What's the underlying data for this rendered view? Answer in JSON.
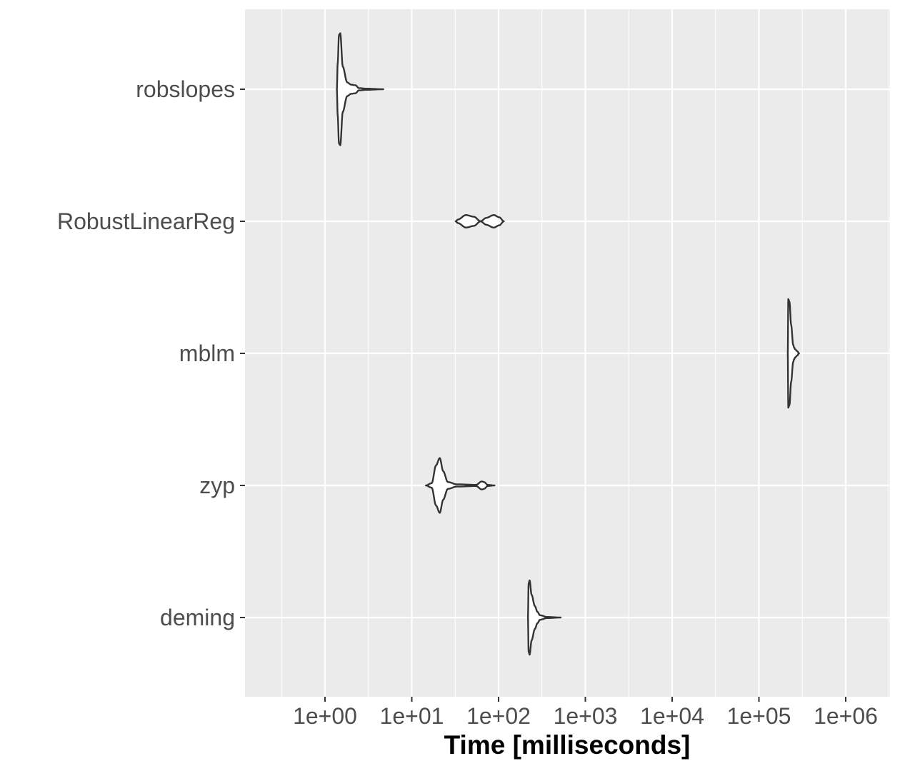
{
  "chart_data": {
    "type": "violin",
    "orientation": "horizontal",
    "title": "",
    "xlabel": "Time [milliseconds]",
    "ylabel": "",
    "x_scale": "log10",
    "xlim": [
      0.12,
      2300000
    ],
    "x_ticks": [
      1,
      10,
      100,
      1000,
      10000,
      100000,
      1000000
    ],
    "x_tick_labels": [
      "1e+00",
      "1e+01",
      "1e+02",
      "1e+03",
      "1e+04",
      "1e+05",
      "1e+06"
    ],
    "categories": [
      "robslopes",
      "RobustLinearReg",
      "mblm",
      "zyp",
      "deming"
    ],
    "grid": true,
    "colors": {
      "panel": "#ebebeb",
      "grid": "#ffffff",
      "outline": "#333333",
      "fill": "#ffffff",
      "tick_text": "#4d4d4d"
    },
    "series": [
      {
        "name": "robslopes",
        "min": 1.37,
        "max": 4.7,
        "profile": [
          [
            1.37,
            0.0
          ],
          [
            1.4,
            0.45
          ],
          [
            1.45,
            0.95
          ],
          [
            1.5,
            0.98
          ],
          [
            1.6,
            0.4
          ],
          [
            1.8,
            0.12
          ],
          [
            2.0,
            0.08
          ],
          [
            2.25,
            0.07
          ],
          [
            2.45,
            0.02
          ],
          [
            3.0,
            0.01
          ],
          [
            4.7,
            0.0
          ]
        ]
      },
      {
        "name": "RobustLinearReg",
        "min": 32,
        "max": 115,
        "profile": [
          [
            32,
            0.0
          ],
          [
            34,
            0.03
          ],
          [
            42,
            0.11
          ],
          [
            52,
            0.08
          ],
          [
            62,
            0.0
          ],
          [
            72,
            0.06
          ],
          [
            88,
            0.11
          ],
          [
            102,
            0.07
          ],
          [
            115,
            0.0
          ]
        ]
      },
      {
        "name": "mblm",
        "min": 215000,
        "max": 290000,
        "profile": [
          [
            215000,
            0.0
          ],
          [
            218000,
            0.95
          ],
          [
            225000,
            0.9
          ],
          [
            235000,
            0.5
          ],
          [
            248000,
            0.15
          ],
          [
            255000,
            0.1
          ],
          [
            262000,
            0.07
          ],
          [
            275000,
            0.04
          ],
          [
            290000,
            0.0
          ]
        ]
      },
      {
        "name": "zyp",
        "min": 14.5,
        "max": 90,
        "profile": [
          [
            14.5,
            0.0
          ],
          [
            17,
            0.04
          ],
          [
            19,
            0.35
          ],
          [
            21,
            0.48
          ],
          [
            23,
            0.25
          ],
          [
            26,
            0.06
          ],
          [
            33,
            0.02
          ],
          [
            55,
            0.01
          ],
          [
            64,
            0.07
          ],
          [
            68,
            0.06
          ],
          [
            75,
            0.01
          ],
          [
            90,
            0.0
          ]
        ]
      },
      {
        "name": "deming",
        "min": 218,
        "max": 520,
        "profile": [
          [
            218,
            0.0
          ],
          [
            222,
            0.6
          ],
          [
            228,
            0.65
          ],
          [
            240,
            0.4
          ],
          [
            262,
            0.2
          ],
          [
            280,
            0.1
          ],
          [
            300,
            0.04
          ],
          [
            360,
            0.01
          ],
          [
            520,
            0.0
          ]
        ]
      }
    ]
  }
}
